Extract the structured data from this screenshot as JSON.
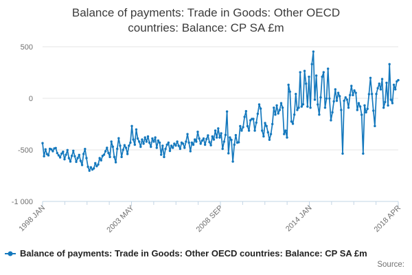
{
  "title_lines": [
    "Balance of payments: Trade in Goods: Other OECD",
    "countries: Balance: CP SA £m"
  ],
  "legend": {
    "label": "Balance of payments: Trade in Goods: Other OECD countries: Balance: CP SA £m"
  },
  "source_label": "Source:",
  "colors": {
    "line": "#1478bd",
    "grid": "#e5e5e5",
    "axis": "#c2d4e4",
    "tick_label": "#6f6f6f",
    "title": "#3b3b3b"
  },
  "chart_data": {
    "type": "line",
    "title": "Balance of payments: Trade in Goods: Other OECD countries: Balance: CP SA £m",
    "ylabel": "",
    "xlabel": "",
    "unit": "£m",
    "frequency": "monthly",
    "x_start": "1998 JAN",
    "x_end": "2018 APR",
    "x_tick_labels": [
      "1998 JAN",
      "2003 MAY",
      "2008 SEP",
      "2014 JAN",
      "2018 APR"
    ],
    "x_minor_ticks_between_labels": 3,
    "ylim": [
      -1000,
      500
    ],
    "grid": "horizontal-only",
    "legend_position": "bottom-left",
    "y_ticks": [
      {
        "label": "500",
        "value": 500
      },
      {
        "label": "0",
        "value": 0
      },
      {
        "label": "-500",
        "value": -500
      },
      {
        "label": "-1 000",
        "value": -1000
      }
    ],
    "values": [
      -435,
      -562,
      -495,
      -541,
      -553,
      -490,
      -495,
      -513,
      -486,
      -482,
      -531,
      -553,
      -573,
      -536,
      -518,
      -591,
      -547,
      -502,
      -580,
      -613,
      -558,
      -509,
      -562,
      -616,
      -580,
      -549,
      -607,
      -647,
      -540,
      -491,
      -580,
      -664,
      -702,
      -669,
      -691,
      -680,
      -629,
      -658,
      -642,
      -580,
      -602,
      -558,
      -547,
      -513,
      -480,
      -530,
      -569,
      -420,
      -470,
      -569,
      -620,
      -490,
      -387,
      -460,
      -569,
      -500,
      -455,
      -480,
      -540,
      -460,
      -430,
      -269,
      -400,
      -450,
      -302,
      -390,
      -420,
      -470,
      -400,
      -440,
      -380,
      -420,
      -370,
      -430,
      -470,
      -390,
      -420,
      -380,
      -480,
      -410,
      -430,
      -547,
      -460,
      -569,
      -490,
      -450,
      -430,
      -510,
      -460,
      -480,
      -440,
      -458,
      -420,
      -460,
      -490,
      -430,
      -440,
      -480,
      -420,
      -347,
      -430,
      -513,
      -430,
      -450,
      -400,
      -420,
      -325,
      -390,
      -440,
      -410,
      -390,
      -450,
      -395,
      -360,
      -425,
      -455,
      -370,
      -400,
      -313,
      -380,
      -292,
      -380,
      -340,
      -490,
      -420,
      -355,
      -128,
      -533,
      -380,
      -403,
      -613,
      -450,
      -357,
      -430,
      -426,
      -270,
      -313,
      -280,
      -180,
      -125,
      -270,
      -313,
      -213,
      -200,
      -200,
      -313,
      -236,
      -150,
      -60,
      -100,
      -313,
      -369,
      -240,
      -269,
      -330,
      -402,
      -347,
      -250,
      -91,
      -158,
      -69,
      -147,
      -113,
      -47,
      -91,
      -347,
      -313,
      -380,
      131,
      64,
      -225,
      -247,
      -158,
      42,
      -113,
      -91,
      253,
      -80,
      -58,
      265,
      142,
      -80,
      209,
      -91,
      331,
      453,
      -13,
      220,
      -60,
      -158,
      9,
      209,
      253,
      -91,
      -2,
      287,
      -2,
      -213,
      -136,
      -30,
      87,
      -24,
      53,
      20,
      -113,
      -536,
      -24,
      9,
      -13,
      -91,
      31,
      120,
      31,
      76,
      53,
      -113,
      -47,
      -80,
      -160,
      -536,
      -69,
      -136,
      -102,
      40,
      198,
      42,
      -120,
      -269,
      42,
      98,
      142,
      87,
      187,
      -91,
      -36,
      150,
      -69,
      331,
      -13,
      -47,
      131,
      87,
      164,
      176
    ]
  }
}
